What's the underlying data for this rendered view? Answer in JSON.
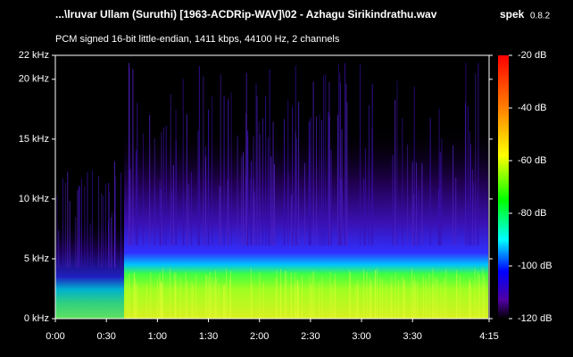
{
  "chart_data": {
    "type": "spectrogram",
    "title": "...\\lruvar Ullam (Suruthi) [1963-ACDRip-WAV]\\02 - Azhagu Sirikindrathu.wav",
    "app_name": "spek",
    "app_version": "0.8.2",
    "subtitle": "PCM signed 16-bit little-endian, 1411 kbps, 44100 Hz, 2 channels",
    "xlim": [
      0,
      255
    ],
    "xticks": [
      {
        "value": 0,
        "label": "0:00"
      },
      {
        "value": 30,
        "label": "0:30"
      },
      {
        "value": 60,
        "label": "1:00"
      },
      {
        "value": 90,
        "label": "1:30"
      },
      {
        "value": 120,
        "label": "2:00"
      },
      {
        "value": 150,
        "label": "2:30"
      },
      {
        "value": 180,
        "label": "3:00"
      },
      {
        "value": 210,
        "label": "3:30"
      },
      {
        "value": 255,
        "label": "4:15"
      }
    ],
    "ylim": [
      0,
      22
    ],
    "yticks": [
      {
        "value": 0,
        "label": "0 kHz"
      },
      {
        "value": 5,
        "label": "5 kHz"
      },
      {
        "value": 10,
        "label": "10 kHz"
      },
      {
        "value": 15,
        "label": "15 kHz"
      },
      {
        "value": 20,
        "label": "20 kHz"
      },
      {
        "value": 22,
        "label": "22 kHz"
      }
    ],
    "colorbar": {
      "lim": [
        -120,
        -20
      ],
      "ticks": [
        {
          "value": -20,
          "label": "-20 dB"
        },
        {
          "value": -40,
          "label": "-40 dB"
        },
        {
          "value": -60,
          "label": "-60 dB"
        },
        {
          "value": -80,
          "label": "-80 dB"
        },
        {
          "value": -100,
          "label": "-100 dB"
        },
        {
          "value": -120,
          "label": "-120 dB"
        }
      ]
    }
  }
}
